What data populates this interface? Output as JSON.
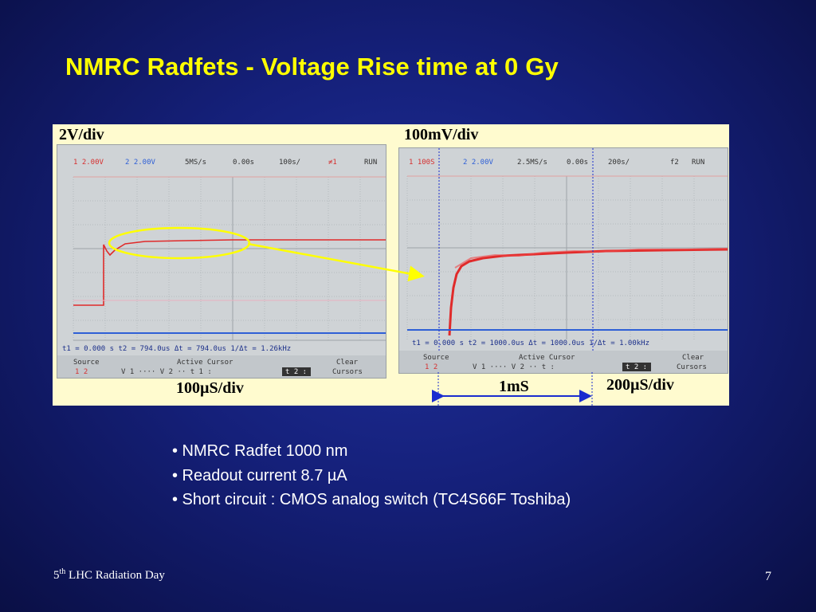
{
  "slide": {
    "title": "NMRC Radfets - Voltage Rise time at 0 Gy",
    "page_number": "7",
    "footer": {
      "sup_num": "5",
      "sup": "th",
      "text": " LHC Radiation Day"
    }
  },
  "figure": {
    "left_caption": "2V/div",
    "left_time_caption": "100µS/div",
    "right_caption": "100mV/div",
    "right_time_caption": "200µS/div",
    "interval_label": "1mS",
    "left_scope": {
      "ch1": "1 2.00V",
      "ch2": "2 2.00V",
      "samp": "5MS/s",
      "offset": "0.00s",
      "timebase": "100s/",
      "trig": "≠1",
      "status": "RUN",
      "cursor_line": "t1 = 0.000 s   t2 = 794.0us   Δt = 794.0us   1/Δt = 1.26kHz",
      "menu": [
        "Source",
        "Active Cursor",
        "Clear"
      ],
      "menu2": [
        "1 2",
        "V 1 ····   V 2 ··   t 1 :",
        "t 2 :",
        "Cursors"
      ]
    },
    "right_scope": {
      "ch1": "1 100S",
      "ch2": "2 2.00V",
      "samp": "2.5MS/s",
      "offset": "0.00s",
      "timebase": "200s/",
      "trig": "f2",
      "status": "RUN",
      "cursor_line": "t1 = 0.000 s   t2 = 1000.0us   Δt = 1000.0us   1/Δt = 1.00kHz",
      "menu": [
        "Source",
        "Active Cursor",
        "Clear"
      ],
      "menu2": [
        "1 2",
        "V 1 ····   V 2 ··   t :",
        "t 2 :",
        "Cursors"
      ]
    }
  },
  "bullets": [
    "• NMRC Radfet 1000 nm",
    "• Readout current 8.7 µA",
    "• Short circuit : CMOS analog switch (TC4S66F Toshiba)"
  ],
  "colors": {
    "title": "#ffff00",
    "trace_red": "#e02a2a",
    "trace_blue": "#2e5fd6",
    "highlight": "#ffff00"
  }
}
